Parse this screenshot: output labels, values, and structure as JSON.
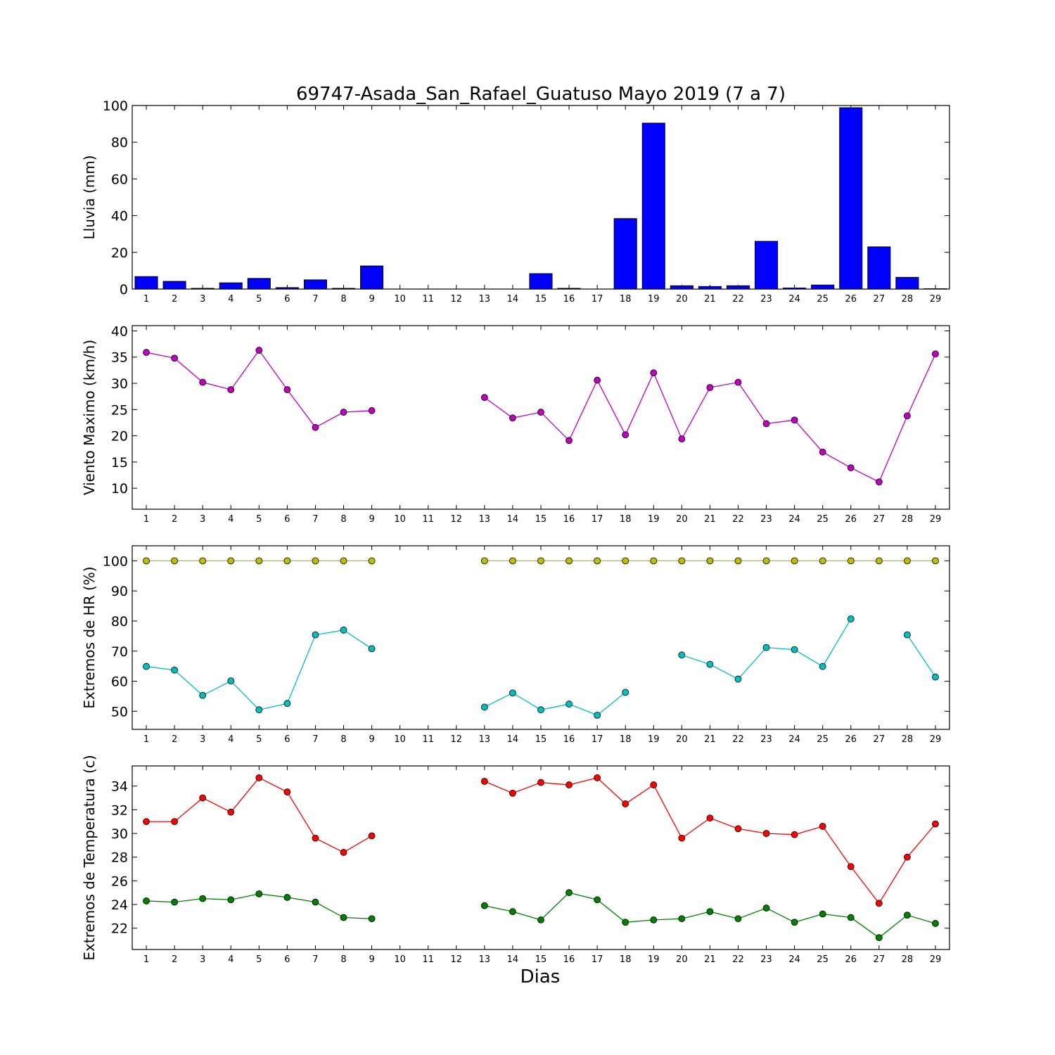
{
  "chart_data": {
    "title": "69747-Asada_San_Rafael_Guatuso Mayo 2019  (7 a 7)",
    "xlabel": "Dias",
    "days": [
      1,
      2,
      3,
      4,
      5,
      6,
      7,
      8,
      9,
      10,
      11,
      12,
      13,
      14,
      15,
      16,
      17,
      18,
      19,
      20,
      21,
      22,
      23,
      24,
      25,
      26,
      27,
      28,
      29
    ],
    "panels": [
      {
        "type": "bar",
        "ylabel": "Lluvia (mm)",
        "ylim": [
          0,
          100
        ],
        "yticks": [
          0,
          20,
          40,
          60,
          80,
          100
        ],
        "series": [
          {
            "color": "#0000ff",
            "values": [
              6.8,
              4.2,
              0.4,
              3.4,
              5.8,
              0.8,
              5.0,
              0.4,
              12.6,
              0,
              0,
              0,
              0,
              0,
              8.4,
              0.4,
              0,
              38.4,
              90.4,
              1.8,
              1.4,
              1.8,
              26.0,
              0.6,
              2.2,
              98.8,
              23.0,
              6.4,
              0.2
            ]
          }
        ]
      },
      {
        "type": "line",
        "ylabel": "Viento Maximo (km/h)",
        "ylim": [
          6,
          41
        ],
        "yticks": [
          10,
          15,
          20,
          25,
          30,
          35,
          40
        ],
        "series": [
          {
            "color": "#bf00bf",
            "values": [
              35.9,
              34.8,
              30.2,
              28.8,
              36.3,
              28.8,
              21.6,
              24.5,
              24.8,
              null,
              null,
              null,
              27.3,
              23.4,
              24.5,
              19.1,
              30.6,
              20.2,
              32.0,
              19.4,
              29.2,
              30.2,
              22.3,
              23.0,
              16.9,
              13.9,
              11.2,
              23.8,
              35.6
            ]
          }
        ]
      },
      {
        "type": "line",
        "ylabel": "Extremos de HR (%)",
        "ylim": [
          44,
          105
        ],
        "yticks": [
          50,
          60,
          70,
          80,
          90,
          100
        ],
        "series": [
          {
            "color": "#bfbf00",
            "values": [
              100,
              100,
              100,
              100,
              100,
              100,
              100,
              100,
              100,
              null,
              null,
              null,
              100,
              100,
              100,
              100,
              100,
              100,
              100,
              100,
              100,
              100,
              100,
              100,
              100,
              100,
              100,
              100,
              100
            ]
          },
          {
            "color": "#00bfbf",
            "values": [
              64.9,
              63.7,
              55.3,
              60.1,
              50.5,
              52.6,
              75.4,
              77.0,
              70.8,
              null,
              null,
              null,
              51.4,
              56.1,
              50.5,
              52.4,
              48.7,
              56.3,
              null,
              68.7,
              65.6,
              60.7,
              71.2,
              70.5,
              64.9,
              80.7,
              null,
              75.4,
              61.4
            ]
          }
        ]
      },
      {
        "type": "line",
        "ylabel": "Extremos de Temperatura (c)",
        "ylim": [
          20.2,
          35.7
        ],
        "yticks": [
          22,
          24,
          26,
          28,
          30,
          32,
          34
        ],
        "series": [
          {
            "color": "#ff0000",
            "values": [
              31.0,
              31.0,
              33.0,
              31.8,
              34.7,
              33.5,
              29.6,
              28.4,
              29.8,
              null,
              null,
              null,
              34.4,
              33.4,
              34.3,
              34.1,
              34.7,
              32.5,
              34.1,
              29.6,
              31.3,
              30.4,
              30.0,
              29.9,
              30.6,
              27.2,
              24.1,
              28.0,
              30.8
            ]
          },
          {
            "color": "#008000",
            "values": [
              24.3,
              24.2,
              24.5,
              24.4,
              24.9,
              24.6,
              24.2,
              22.9,
              22.8,
              null,
              null,
              null,
              23.9,
              23.4,
              22.7,
              25.0,
              24.4,
              22.5,
              22.7,
              22.8,
              23.4,
              22.8,
              23.7,
              22.5,
              23.2,
              22.9,
              21.2,
              23.1,
              22.4
            ]
          }
        ]
      }
    ]
  }
}
